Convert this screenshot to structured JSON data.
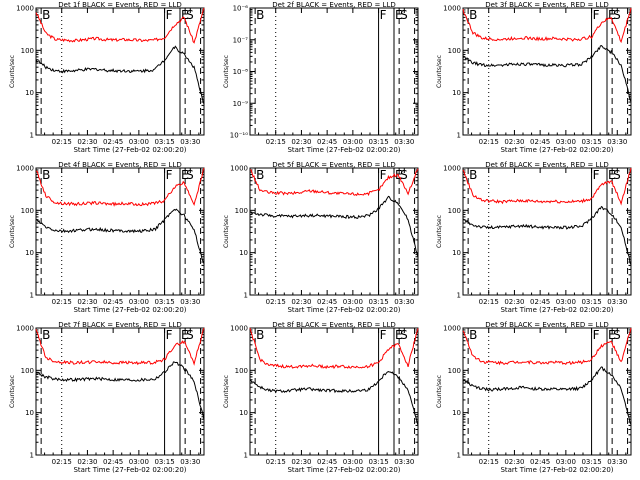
{
  "colors": {
    "events": "#000000",
    "lld": "#ff0000",
    "axis": "#000000",
    "background": "#ffffff"
  },
  "shared": {
    "xlabel": "Start Time (27-Feb-02 02:00:20)",
    "ylabel": "Counts/sec",
    "x_ticks": [
      "02:15",
      "02:30",
      "02:45",
      "03:00",
      "03:15",
      "03:30"
    ],
    "x_tick_minutes": [
      15,
      30,
      45,
      60,
      75,
      90
    ],
    "xlim_minutes": [
      0,
      98
    ],
    "y_scale": "log"
  },
  "chart_data": [
    {
      "type": "line",
      "title": "Det 1f BLACK = Events, RED = LLD",
      "ylim": [
        1,
        1000
      ],
      "y_ticks": [
        "1",
        "10",
        "100",
        "1000"
      ],
      "y_tick_values": [
        1,
        10,
        100,
        1000
      ],
      "markers": [
        {
          "label": "B",
          "minute": 3,
          "style": "dashed"
        },
        {
          "label": "",
          "minute": 15,
          "style": "dotted"
        },
        {
          "label": "F",
          "minute": 75,
          "style": "solid"
        },
        {
          "label": "E",
          "minute": 84,
          "style": "solid"
        },
        {
          "label": "S",
          "minute": 87,
          "style": "dashed"
        },
        {
          "label": "",
          "minute": 96,
          "style": "dashed"
        }
      ],
      "series": [
        {
          "color": "lld",
          "values": [
            800,
            250,
            180,
            175,
            170,
            180,
            190,
            180,
            175,
            180,
            175,
            170,
            175,
            200,
            400,
            600,
            150,
            1000
          ]
        },
        {
          "color": "events",
          "values": [
            60,
            40,
            33,
            32,
            33,
            35,
            36,
            34,
            33,
            33,
            32,
            33,
            35,
            60,
            120,
            80,
            40,
            5
          ]
        }
      ]
    },
    {
      "type": "line",
      "title": "Det 2f BLACK = Events, RED = LLD",
      "ylim": [
        1e-10,
        1e-06
      ],
      "y_ticks": [
        "10⁻¹⁰",
        "10⁻⁹",
        "10⁻⁸",
        "10⁻⁷",
        "10⁻⁶"
      ],
      "y_tick_values": [
        1e-10,
        1e-09,
        1e-08,
        1e-07,
        1e-06
      ],
      "markers": [
        {
          "label": "B",
          "minute": 3,
          "style": "dashed"
        },
        {
          "label": "",
          "minute": 15,
          "style": "dotted"
        },
        {
          "label": "F",
          "minute": 75,
          "style": "solid"
        },
        {
          "label": "E",
          "minute": 84,
          "style": "solid"
        },
        {
          "label": "S",
          "minute": 87,
          "style": "dashed"
        },
        {
          "label": "",
          "minute": 96,
          "style": "dashed"
        }
      ],
      "series": []
    },
    {
      "type": "line",
      "title": "Det 3f BLACK = Events, RED = LLD",
      "ylim": [
        1,
        1000
      ],
      "y_ticks": [
        "1",
        "10",
        "100",
        "1000"
      ],
      "y_tick_values": [
        1,
        10,
        100,
        1000
      ],
      "markers": [
        {
          "label": "B",
          "minute": 3,
          "style": "dashed"
        },
        {
          "label": "",
          "minute": 15,
          "style": "dotted"
        },
        {
          "label": "F",
          "minute": 75,
          "style": "solid"
        },
        {
          "label": "E",
          "minute": 84,
          "style": "solid"
        },
        {
          "label": "S",
          "minute": 87,
          "style": "dashed"
        },
        {
          "label": "",
          "minute": 96,
          "style": "dashed"
        }
      ],
      "series": [
        {
          "color": "lld",
          "values": [
            900,
            260,
            190,
            185,
            180,
            190,
            200,
            190,
            185,
            190,
            185,
            180,
            185,
            210,
            450,
            600,
            160,
            1000
          ]
        },
        {
          "color": "events",
          "values": [
            70,
            50,
            45,
            44,
            45,
            47,
            48,
            46,
            45,
            45,
            44,
            45,
            47,
            70,
            130,
            90,
            45,
            6
          ]
        }
      ]
    },
    {
      "type": "line",
      "title": "Det 4f BLACK = Events, RED = LLD",
      "ylim": [
        1,
        1000
      ],
      "y_ticks": [
        "1",
        "10",
        "100",
        "1000"
      ],
      "y_tick_values": [
        1,
        10,
        100,
        1000
      ],
      "markers": [
        {
          "label": "B",
          "minute": 3,
          "style": "dashed"
        },
        {
          "label": "",
          "minute": 15,
          "style": "dotted"
        },
        {
          "label": "F",
          "minute": 75,
          "style": "solid"
        },
        {
          "label": "E",
          "minute": 84,
          "style": "solid"
        },
        {
          "label": "S",
          "minute": 87,
          "style": "dashed"
        },
        {
          "label": "",
          "minute": 96,
          "style": "dashed"
        }
      ],
      "series": [
        {
          "color": "lld",
          "values": [
            900,
            220,
            150,
            145,
            140,
            145,
            150,
            145,
            140,
            145,
            140,
            140,
            145,
            170,
            350,
            450,
            140,
            1000
          ]
        },
        {
          "color": "events",
          "values": [
            60,
            40,
            33,
            32,
            33,
            35,
            36,
            34,
            33,
            33,
            32,
            33,
            35,
            60,
            110,
            75,
            35,
            5
          ]
        }
      ]
    },
    {
      "type": "line",
      "title": "Det 5f BLACK = Events, RED = LLD",
      "ylim": [
        1,
        1000
      ],
      "y_ticks": [
        "1",
        "10",
        "100",
        "1000"
      ],
      "y_tick_values": [
        1,
        10,
        100,
        1000
      ],
      "markers": [
        {
          "label": "B",
          "minute": 3,
          "style": "dashed"
        },
        {
          "label": "",
          "minute": 15,
          "style": "dotted"
        },
        {
          "label": "F",
          "minute": 75,
          "style": "solid"
        },
        {
          "label": "E",
          "minute": 84,
          "style": "solid"
        },
        {
          "label": "S",
          "minute": 87,
          "style": "dashed"
        },
        {
          "label": "",
          "minute": 96,
          "style": "dashed"
        }
      ],
      "series": [
        {
          "color": "lld",
          "values": [
            950,
            300,
            260,
            255,
            250,
            260,
            290,
            280,
            260,
            250,
            245,
            240,
            250,
            300,
            600,
            700,
            250,
            1000
          ]
        },
        {
          "color": "events",
          "values": [
            90,
            80,
            75,
            73,
            72,
            74,
            76,
            75,
            73,
            72,
            70,
            70,
            75,
            110,
            200,
            150,
            60,
            8
          ]
        }
      ]
    },
    {
      "type": "line",
      "title": "Det 6f BLACK = Events, RED = LLD",
      "ylim": [
        1,
        1000
      ],
      "y_ticks": [
        "1",
        "10",
        "100",
        "1000"
      ],
      "y_tick_values": [
        1,
        10,
        100,
        1000
      ],
      "markers": [
        {
          "label": "B",
          "minute": 3,
          "style": "dashed"
        },
        {
          "label": "",
          "minute": 15,
          "style": "dotted"
        },
        {
          "label": "F",
          "minute": 75,
          "style": "solid"
        },
        {
          "label": "E",
          "minute": 84,
          "style": "solid"
        },
        {
          "label": "S",
          "minute": 87,
          "style": "dashed"
        },
        {
          "label": "",
          "minute": 96,
          "style": "dashed"
        }
      ],
      "series": [
        {
          "color": "lld",
          "values": [
            900,
            230,
            170,
            165,
            160,
            165,
            170,
            165,
            160,
            165,
            160,
            160,
            165,
            190,
            400,
            500,
            150,
            1000
          ]
        },
        {
          "color": "events",
          "values": [
            60,
            45,
            40,
            39,
            40,
            42,
            43,
            41,
            40,
            40,
            39,
            40,
            42,
            65,
            120,
            85,
            40,
            5
          ]
        }
      ]
    },
    {
      "type": "line",
      "title": "Det 7f BLACK = Events, RED = LLD",
      "ylim": [
        1,
        1000
      ],
      "y_ticks": [
        "1",
        "10",
        "100",
        "1000"
      ],
      "y_tick_values": [
        1,
        10,
        100,
        1000
      ],
      "markers": [
        {
          "label": "B",
          "minute": 3,
          "style": "dashed"
        },
        {
          "label": "",
          "minute": 15,
          "style": "dotted"
        },
        {
          "label": "F",
          "minute": 75,
          "style": "solid"
        },
        {
          "label": "E",
          "minute": 84,
          "style": "solid"
        },
        {
          "label": "S",
          "minute": 87,
          "style": "dashed"
        },
        {
          "label": "",
          "minute": 96,
          "style": "dashed"
        }
      ],
      "series": [
        {
          "color": "lld",
          "values": [
            900,
            200,
            160,
            155,
            150,
            155,
            160,
            155,
            150,
            155,
            150,
            150,
            155,
            180,
            380,
            480,
            150,
            1000
          ]
        },
        {
          "color": "events",
          "values": [
            90,
            70,
            62,
            60,
            60,
            62,
            64,
            62,
            60,
            60,
            59,
            60,
            62,
            90,
            160,
            110,
            55,
            7
          ]
        }
      ]
    },
    {
      "type": "line",
      "title": "Det 8f BLACK = Events, RED = LLD",
      "ylim": [
        1,
        1000
      ],
      "y_ticks": [
        "1",
        "10",
        "100",
        "1000"
      ],
      "y_tick_values": [
        1,
        10,
        100,
        1000
      ],
      "markers": [
        {
          "label": "B",
          "minute": 3,
          "style": "dashed"
        },
        {
          "label": "",
          "minute": 15,
          "style": "dotted"
        },
        {
          "label": "F",
          "minute": 75,
          "style": "solid"
        },
        {
          "label": "E",
          "minute": 84,
          "style": "solid"
        },
        {
          "label": "S",
          "minute": 87,
          "style": "dashed"
        },
        {
          "label": "",
          "minute": 96,
          "style": "dashed"
        }
      ],
      "series": [
        {
          "color": "lld",
          "values": [
            950,
            180,
            130,
            125,
            120,
            125,
            130,
            125,
            120,
            125,
            120,
            120,
            125,
            150,
            320,
            420,
            130,
            1000
          ]
        },
        {
          "color": "events",
          "values": [
            60,
            40,
            33,
            32,
            33,
            35,
            36,
            34,
            33,
            33,
            32,
            33,
            35,
            55,
            100,
            70,
            35,
            5
          ]
        }
      ]
    },
    {
      "type": "line",
      "title": "Det 9f BLACK = Events, RED = LLD",
      "ylim": [
        1,
        1000
      ],
      "y_ticks": [
        "1",
        "10",
        "100",
        "1000"
      ],
      "y_tick_values": [
        1,
        10,
        100,
        1000
      ],
      "markers": [
        {
          "label": "B",
          "minute": 3,
          "style": "dashed"
        },
        {
          "label": "",
          "minute": 15,
          "style": "dotted"
        },
        {
          "label": "F",
          "minute": 75,
          "style": "solid"
        },
        {
          "label": "E",
          "minute": 84,
          "style": "solid"
        },
        {
          "label": "S",
          "minute": 87,
          "style": "dashed"
        },
        {
          "label": "",
          "minute": 96,
          "style": "dashed"
        }
      ],
      "series": [
        {
          "color": "lld",
          "values": [
            900,
            220,
            160,
            155,
            150,
            155,
            160,
            155,
            150,
            155,
            150,
            150,
            155,
            180,
            380,
            480,
            150,
            1000
          ]
        },
        {
          "color": "events",
          "values": [
            60,
            42,
            36,
            35,
            36,
            38,
            39,
            37,
            36,
            36,
            35,
            36,
            38,
            60,
            115,
            80,
            38,
            5
          ]
        }
      ]
    }
  ]
}
